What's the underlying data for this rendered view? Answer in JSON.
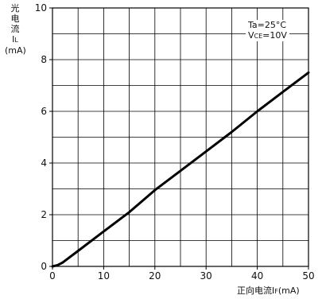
{
  "chart_data": {
    "type": "line",
    "x": [
      0,
      1,
      2,
      5,
      10,
      15,
      20,
      25,
      30,
      35,
      40,
      45,
      50
    ],
    "series": [
      {
        "values": [
          0,
          0.05,
          0.15,
          0.6,
          1.35,
          2.1,
          2.95,
          3.7,
          4.45,
          5.2,
          6.0,
          6.75,
          7.5
        ]
      }
    ],
    "xlim": [
      0,
      50
    ],
    "ylim": [
      0,
      10
    ],
    "xticks": [
      0,
      10,
      20,
      30,
      40,
      50
    ],
    "yticks": [
      0,
      2,
      4,
      6,
      8,
      10
    ],
    "grid": true,
    "grid_divisions": {
      "x": 10,
      "y": 10
    },
    "xlabel": {
      "main": "正向电流I",
      "sub": "F",
      "unit": "(mA)"
    },
    "ylabel": {
      "line1": "光",
      "line2": "电",
      "line3": "流",
      "sym": "I",
      "sub": "L",
      "unit": "(mA)"
    },
    "annotation": {
      "line1": "Ta=25°C",
      "line2_main": "V",
      "line2_sub": "CE",
      "line2_rest": "=10V",
      "position": "top-right"
    }
  }
}
